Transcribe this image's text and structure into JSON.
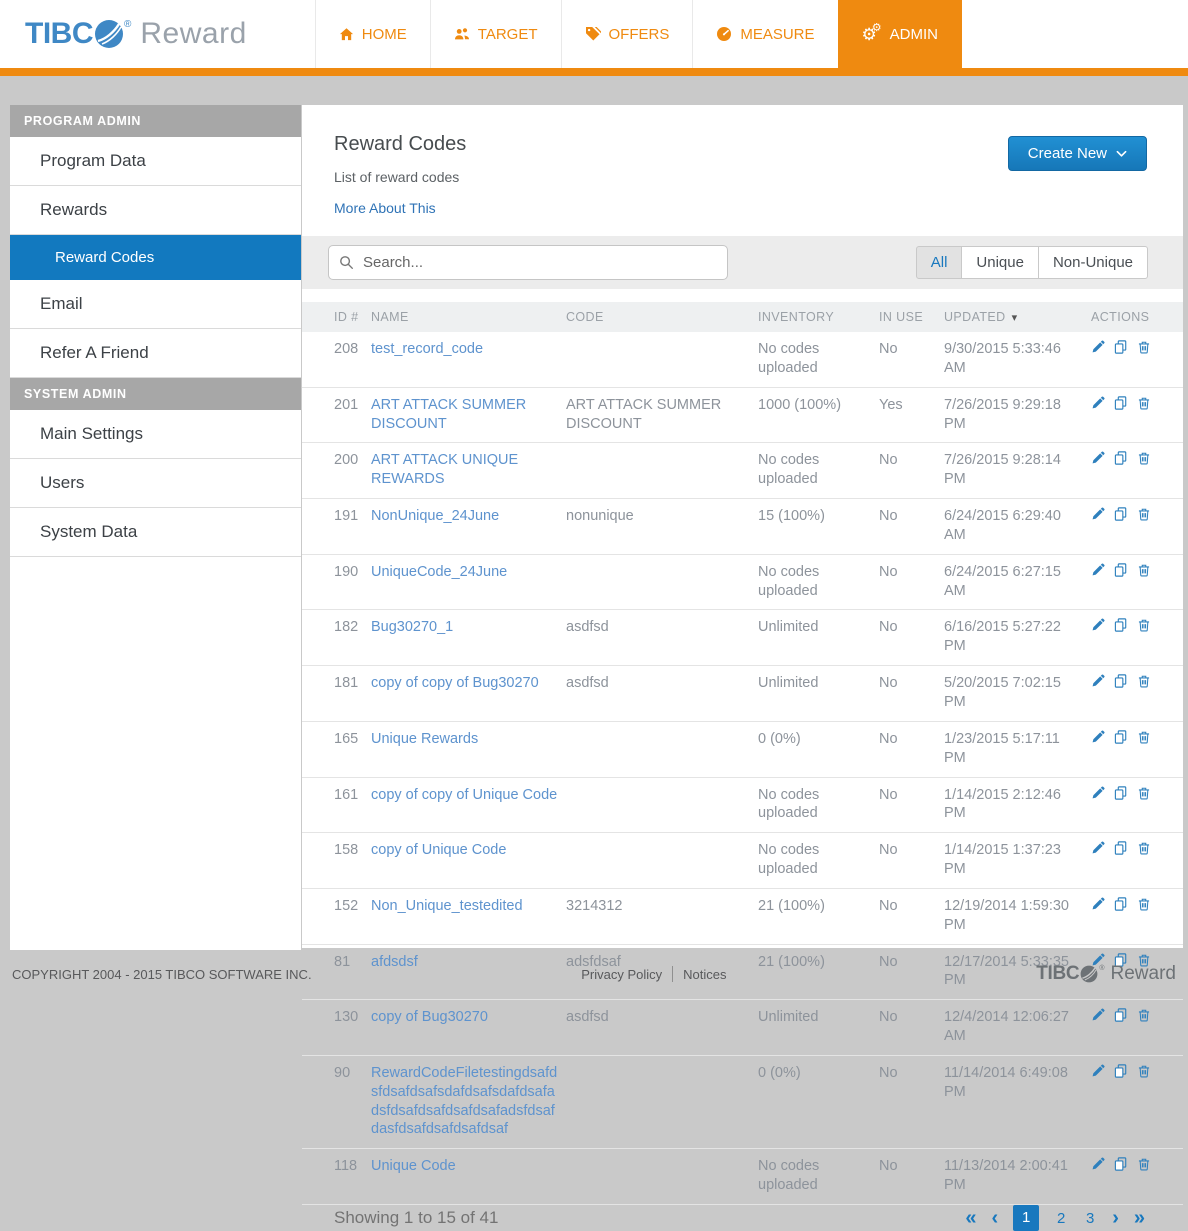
{
  "colors": {
    "accent_orange": "#ef8a10",
    "accent_blue": "#1878be",
    "selected_blue": "#1279bf",
    "link_blue": "#5e93ce"
  },
  "brand": {
    "logo_prefix": "TIBC",
    "registered": "®",
    "logo_suffix": "Reward"
  },
  "nav": {
    "tabs": [
      {
        "label": "HOME",
        "icon": "home-icon",
        "active": false
      },
      {
        "label": "TARGET",
        "icon": "users-icon",
        "active": false
      },
      {
        "label": "OFFERS",
        "icon": "tags-icon",
        "active": false
      },
      {
        "label": "MEASURE",
        "icon": "gauge-icon",
        "active": false
      },
      {
        "label": "ADMIN",
        "icon": "gears-icon",
        "active": true
      }
    ]
  },
  "sidebar": {
    "sections": [
      {
        "header": "PROGRAM ADMIN",
        "items": [
          {
            "label": "Program Data",
            "active": false,
            "sub": false
          },
          {
            "label": "Rewards",
            "active": false,
            "sub": false
          },
          {
            "label": "Reward Codes",
            "active": true,
            "sub": true
          },
          {
            "label": "Email",
            "active": false,
            "sub": false
          },
          {
            "label": "Refer A Friend",
            "active": false,
            "sub": false
          }
        ]
      },
      {
        "header": "SYSTEM ADMIN",
        "items": [
          {
            "label": "Main Settings",
            "active": false,
            "sub": false
          },
          {
            "label": "Users",
            "active": false,
            "sub": false
          },
          {
            "label": "System Data",
            "active": false,
            "sub": false
          }
        ]
      }
    ]
  },
  "page": {
    "title": "Reward Codes",
    "subtitle": "List of reward codes",
    "more_link": "More About This",
    "create_button": "Create New"
  },
  "toolbar": {
    "search_placeholder": "Search...",
    "filters": [
      {
        "label": "All",
        "active": true
      },
      {
        "label": "Unique",
        "active": false
      },
      {
        "label": "Non-Unique",
        "active": false
      }
    ]
  },
  "table": {
    "columns": [
      {
        "label": "ID #"
      },
      {
        "label": "NAME"
      },
      {
        "label": "CODE"
      },
      {
        "label": "INVENTORY"
      },
      {
        "label": "IN USE"
      },
      {
        "label": "UPDATED",
        "sort": "desc"
      },
      {
        "label": "ACTIONS"
      }
    ],
    "rows": [
      {
        "id": "208",
        "name": "test_record_code",
        "code": "",
        "inventory": "No codes uploaded",
        "in_use": "No",
        "updated": "9/30/2015 5:33:46 AM"
      },
      {
        "id": "201",
        "name": "ART ATTACK SUMMER DISCOUNT",
        "code": "ART ATTACK SUMMER DISCOUNT",
        "inventory": "1000 (100%)",
        "in_use": "Yes",
        "updated": "7/26/2015 9:29:18 PM"
      },
      {
        "id": "200",
        "name": "ART ATTACK UNIQUE REWARDS",
        "code": "",
        "inventory": "No codes uploaded",
        "in_use": "No",
        "updated": "7/26/2015 9:28:14 PM"
      },
      {
        "id": "191",
        "name": "NonUnique_24June",
        "code": "nonunique",
        "inventory": "15 (100%)",
        "in_use": "No",
        "updated": "6/24/2015 6:29:40 AM"
      },
      {
        "id": "190",
        "name": "UniqueCode_24June",
        "code": "",
        "inventory": "No codes uploaded",
        "in_use": "No",
        "updated": "6/24/2015 6:27:15 AM"
      },
      {
        "id": "182",
        "name": "Bug30270_1",
        "code": "asdfsd",
        "inventory": "Unlimited",
        "in_use": "No",
        "updated": "6/16/2015 5:27:22 PM"
      },
      {
        "id": "181",
        "name": "copy of copy of Bug30270",
        "code": "asdfsd",
        "inventory": "Unlimited",
        "in_use": "No",
        "updated": "5/20/2015 7:02:15 PM"
      },
      {
        "id": "165",
        "name": "Unique Rewards",
        "code": "",
        "inventory": "0 (0%)",
        "in_use": "No",
        "updated": "1/23/2015 5:17:11 PM"
      },
      {
        "id": "161",
        "name": "copy of copy of Unique Code",
        "code": "",
        "inventory": "No codes uploaded",
        "in_use": "No",
        "updated": "1/14/2015 2:12:46 PM"
      },
      {
        "id": "158",
        "name": "copy of Unique Code",
        "code": "",
        "inventory": "No codes uploaded",
        "in_use": "No",
        "updated": "1/14/2015 1:37:23 PM"
      },
      {
        "id": "152",
        "name": "Non_Unique_testedited",
        "code": "3214312",
        "inventory": "21 (100%)",
        "in_use": "No",
        "updated": "12/19/2014 1:59:30 PM"
      },
      {
        "id": "81",
        "name": "afdsdsf",
        "code": "adsfdsaf",
        "inventory": "21 (100%)",
        "in_use": "No",
        "updated": "12/17/2014 5:33:35 PM"
      },
      {
        "id": "130",
        "name": "copy of Bug30270",
        "code": "asdfsd",
        "inventory": "Unlimited",
        "in_use": "No",
        "updated": "12/4/2014 12:06:27 AM"
      },
      {
        "id": "90",
        "name": "RewardCodeFiletestingdsafdsfdsafdsafsdafdsafsdafdsafadsfdsafdsafdsafdsafadsfdsafdasfdsafdsafdsafdsaf",
        "code": "",
        "inventory": "0 (0%)",
        "in_use": "No",
        "updated": "11/14/2014 6:49:08 PM"
      },
      {
        "id": "118",
        "name": "Unique Code",
        "code": "",
        "inventory": "No codes uploaded",
        "in_use": "No",
        "updated": "11/13/2014 2:00:41 PM"
      }
    ]
  },
  "pagination": {
    "summary": "Showing 1 to 15 of 41",
    "pages": [
      "1",
      "2",
      "3"
    ],
    "active_page": "1"
  },
  "footer": {
    "copyright": "COPYRIGHT 2004 - 2015 TIBCO SOFTWARE INC.",
    "links": [
      "Privacy Policy",
      "Notices"
    ]
  }
}
